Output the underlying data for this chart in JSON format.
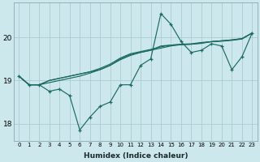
{
  "xlabel": "Humidex (Indice chaleur)",
  "bg_color": "#cce8ec",
  "grid_color": "#aaccd0",
  "line_color": "#1a6b60",
  "xlim": [
    -0.5,
    23.5
  ],
  "ylim": [
    17.6,
    20.8
  ],
  "yticks": [
    18,
    19,
    20
  ],
  "xticks": [
    0,
    1,
    2,
    3,
    4,
    5,
    6,
    7,
    8,
    9,
    10,
    11,
    12,
    13,
    14,
    15,
    16,
    17,
    18,
    19,
    20,
    21,
    22,
    23
  ],
  "series": [
    [
      19.1,
      18.9,
      18.9,
      18.75,
      18.8,
      18.65,
      17.85,
      18.15,
      18.4,
      18.5,
      18.9,
      18.9,
      19.35,
      19.5,
      20.55,
      20.3,
      19.9,
      19.65,
      19.7,
      19.85,
      19.8,
      19.25,
      19.55,
      20.1
    ],
    [
      19.1,
      18.9,
      18.9,
      19.0,
      19.05,
      19.1,
      19.15,
      19.2,
      19.25,
      19.35,
      19.5,
      19.6,
      19.65,
      19.7,
      19.75,
      19.8,
      19.83,
      19.84,
      19.87,
      19.9,
      19.92,
      19.94,
      19.97,
      20.1
    ],
    [
      19.1,
      18.9,
      18.9,
      19.0,
      19.05,
      19.1,
      19.15,
      19.2,
      19.28,
      19.38,
      19.52,
      19.62,
      19.67,
      19.72,
      19.78,
      19.82,
      19.84,
      19.85,
      19.88,
      19.9,
      19.92,
      19.94,
      19.97,
      20.1
    ],
    [
      19.1,
      18.9,
      18.9,
      18.95,
      19.0,
      19.05,
      19.1,
      19.17,
      19.25,
      19.35,
      19.48,
      19.58,
      19.65,
      19.7,
      19.8,
      19.82,
      19.83,
      19.84,
      19.86,
      19.9,
      19.91,
      19.93,
      19.96,
      20.1
    ]
  ]
}
